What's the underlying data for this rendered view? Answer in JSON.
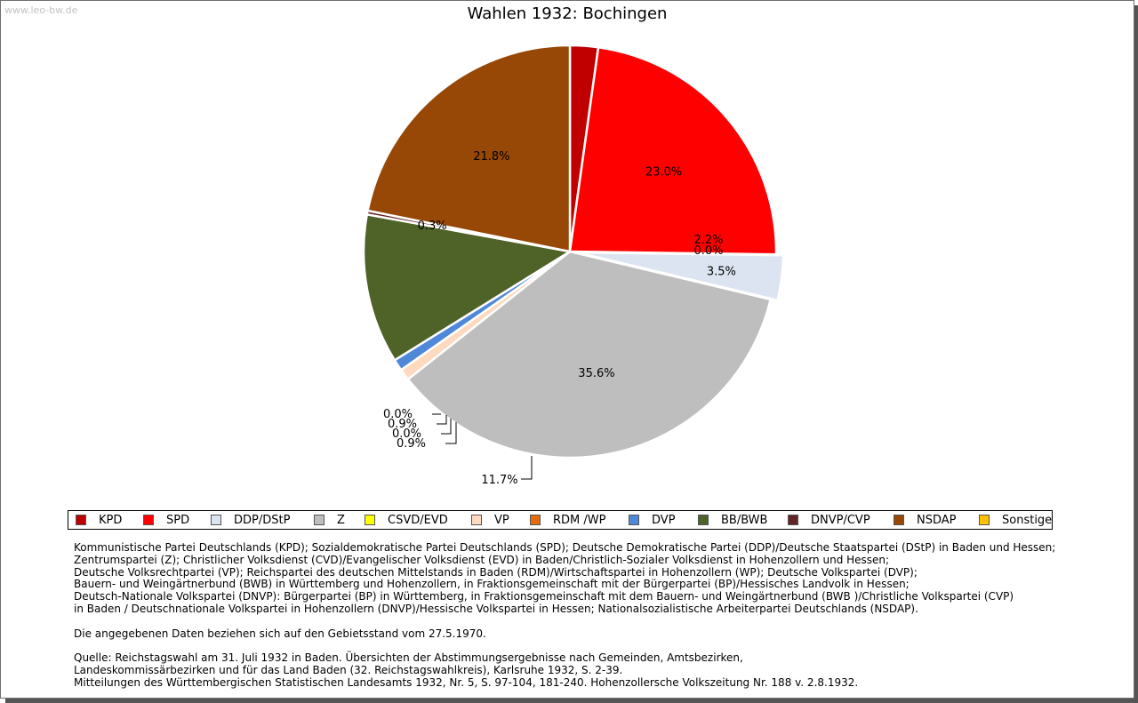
{
  "watermark": "www.leo-bw.de",
  "chart_data": {
    "type": "pie",
    "title": "Wahlen 1932: Bochingen",
    "start_angle_deg": 90,
    "direction": "clockwise",
    "categories": [
      "KPD",
      "SPD",
      "DDP/DStP",
      "Z",
      "CSVD/EVD",
      "VP",
      "RDM /WP",
      "DVP",
      "BB/BWB",
      "DNVP/CVP",
      "NSDAP",
      "Sonstige"
    ],
    "values": [
      2.2,
      23.0,
      3.5,
      35.6,
      0.0,
      0.9,
      0.0,
      0.9,
      11.7,
      0.3,
      21.8,
      0.0
    ],
    "data_labels": [
      "2.2%",
      "23.0%",
      "3.5%",
      "35.6%",
      "0.0%",
      "0.9%",
      "0.0%",
      "0.9%",
      "11.7%",
      "0.3%",
      "21.8%",
      "0.0%"
    ],
    "colors": [
      "#c00000",
      "#ff0000",
      "#dbe4f0",
      "#bebebe",
      "#ffff00",
      "#fdd9bf",
      "#e46c0a",
      "#4f88d9",
      "#4f6228",
      "#632523",
      "#974806",
      "#ffc000"
    ],
    "legend_position": "bottom"
  },
  "notes": {
    "lines": [
      "Kommunistische Partei Deutschlands (KPD); Sozialdemokratische Partei Deutschlands (SPD); Deutsche Demokratische Partei (DDP)/Deutsche Staatspartei (DStP) in Baden und Hessen;",
      "Zentrumspartei (Z); Christlicher Volksdienst (CVD)/Evangelischer Volksdienst (EVD) in Baden/Christlich-Sozialer Volksdienst in Hohenzollern und Hessen;",
      "Deutsche Volksrechtpartei (VP); Reichspartei des deutschen Mittelstands in Baden (RDM)/Wirtschaftspartei in Hohenzollern (WP); Deutsche Volkspartei (DVP);",
      "Bauern- und Weingärtnerbund (BWB) in Württemberg und Hohenzollern, in Fraktionsgemeinschaft mit der Bürgerpartei (BP)/Hessisches Landvolk in Hessen;",
      "Deutsch-Nationale Volkspartei (DNVP): Bürgerpartei (BP) in Württemberg, in Fraktionsgemeinschaft mit dem Bauern- und Weingärtnerbund (BWB )/Christliche Volkspartei (CVP)",
      "in Baden / Deutschnationale Volkspartei in Hohenzollern (DNVP)/Hessische Volkspartei in Hessen; Nationalsozialistische Arbeiterpartei Deutschlands (NSDAP)."
    ],
    "data_note": "Die angegebenen Daten beziehen sich auf den Gebietsstand vom 27.5.1970.",
    "source_lines": [
      "Quelle: Reichstagswahl am 31. Juli 1932 in Baden. Übersichten der Abstimmungsergebnisse nach Gemeinden, Amtsbezirken,",
      "Landeskommissärbezirken und für das Land Baden (32. Reichstagswahlkreis), Karlsruhe 1932, S. 2-39.",
      "Mitteilungen des Württembergischen Statistischen Landesamts 1932, Nr. 5, S. 97-104, 181-240. Hohenzollersche Volkszeitung Nr. 188 v. 2.8.1932."
    ]
  }
}
